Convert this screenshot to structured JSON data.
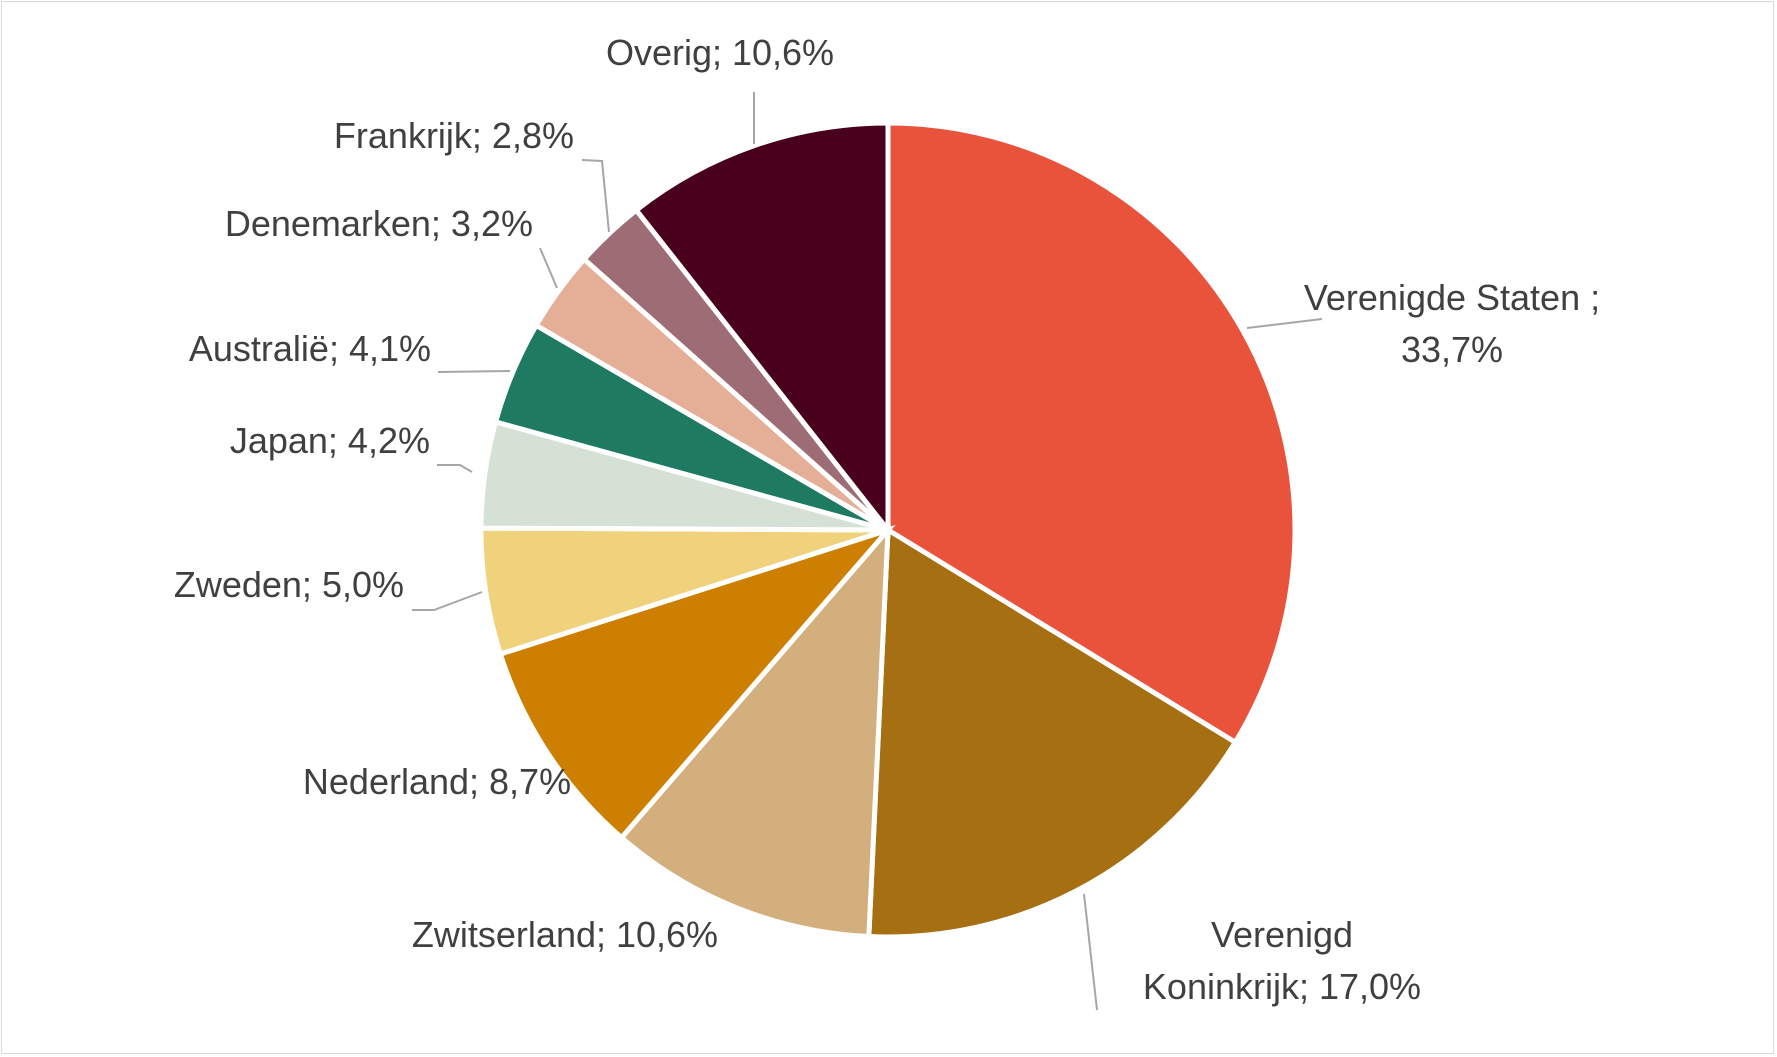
{
  "chart_data": {
    "type": "pie",
    "title": "",
    "categories": [
      "Verenigde Staten",
      "Verenigd Koninkrijk",
      "Zwitserland",
      "Nederland",
      "Zweden",
      "Japan",
      "Australië",
      "Denemarken",
      "Frankrijk",
      "Overig"
    ],
    "values": [
      33.7,
      17.0,
      10.6,
      8.7,
      5.0,
      4.2,
      4.1,
      3.2,
      2.8,
      10.6
    ],
    "unit": "%",
    "colors": [
      "#e9533c",
      "#a66f11",
      "#d4af7e",
      "#cc7f00",
      "#f1d27c",
      "#d6e1d6",
      "#1f7a62",
      "#e5ae97",
      "#9e6c75",
      "#49001b"
    ],
    "start_angle": "12 o'clock",
    "direction": "clockwise",
    "legend": "none",
    "labels": [
      {
        "lines": [
          "Verenigde Staten ;",
          "33,7%"
        ]
      },
      {
        "lines": [
          "Verenigd",
          "Koninkrijk; 17,0%"
        ]
      },
      {
        "lines": [
          "Zwitserland; 10,6%"
        ]
      },
      {
        "lines": [
          "Nederland; 8,7%"
        ]
      },
      {
        "lines": [
          "Zweden; 5,0%"
        ]
      },
      {
        "lines": [
          "Japan; 4,2%"
        ]
      },
      {
        "lines": [
          "Australië; 4,1%"
        ]
      },
      {
        "lines": [
          "Denemarken; 3,2%"
        ]
      },
      {
        "lines": [
          "Frankrijk; 2,8%"
        ]
      },
      {
        "lines": [
          "Overig; 10,6%"
        ]
      }
    ]
  }
}
